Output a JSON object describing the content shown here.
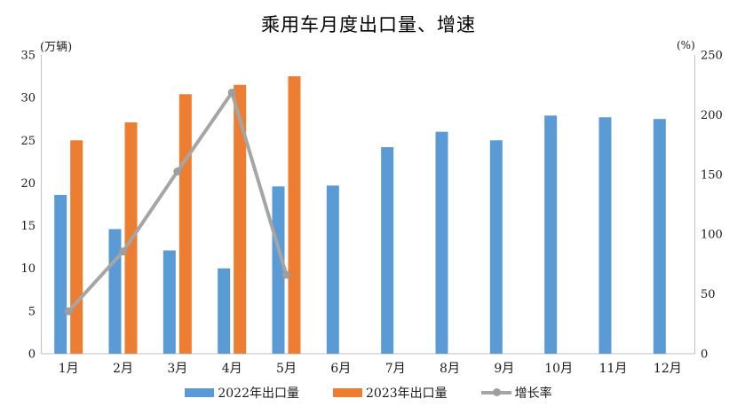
{
  "title": "乘用车月度出口量、增速",
  "left_axis_unit": "(万辆)",
  "right_axis_unit": "(%)",
  "colors": {
    "bar_2022": "#5B9BD5",
    "bar_2023": "#ED7D31",
    "growth_line": "#A5A5A5",
    "growth_marker": "#9E9E9E",
    "axis_line": "#BFBFBF",
    "text": "#1a1a1a"
  },
  "chart_data": {
    "type": "bar",
    "subtype": "grouped-bars-with-line-combo",
    "title": "乘用车月度出口量、增速",
    "categories": [
      "1月",
      "2月",
      "3月",
      "4月",
      "5月",
      "6月",
      "7月",
      "8月",
      "9月",
      "10月",
      "11月",
      "12月"
    ],
    "series": [
      {
        "name": "2022年出口量",
        "type": "bar",
        "axis": "left",
        "color": "#5B9BD5",
        "values": [
          18.6,
          14.6,
          12.1,
          10.0,
          19.6,
          19.7,
          24.2,
          26.0,
          25.0,
          27.9,
          27.7,
          27.5
        ]
      },
      {
        "name": "2023年出口量",
        "type": "bar",
        "axis": "left",
        "color": "#ED7D31",
        "values": [
          25.0,
          27.1,
          30.4,
          31.5,
          32.5,
          null,
          null,
          null,
          null,
          null,
          null,
          null
        ]
      },
      {
        "name": "增长率",
        "type": "line",
        "axis": "right",
        "color": "#A5A5A5",
        "values": [
          35.5,
          85.5,
          152.5,
          218.5,
          66.0,
          null,
          null,
          null,
          null,
          null,
          null,
          null
        ]
      }
    ],
    "left_axis": {
      "unit": "(万辆)",
      "min": 0,
      "max": 35,
      "ticks": [
        0,
        5,
        10,
        15,
        20,
        25,
        30,
        35
      ]
    },
    "right_axis": {
      "unit": "(%)",
      "min": 0,
      "max": 250,
      "ticks": [
        0,
        50,
        100,
        150,
        200,
        250
      ]
    },
    "grid": false,
    "legend_position": "bottom"
  }
}
